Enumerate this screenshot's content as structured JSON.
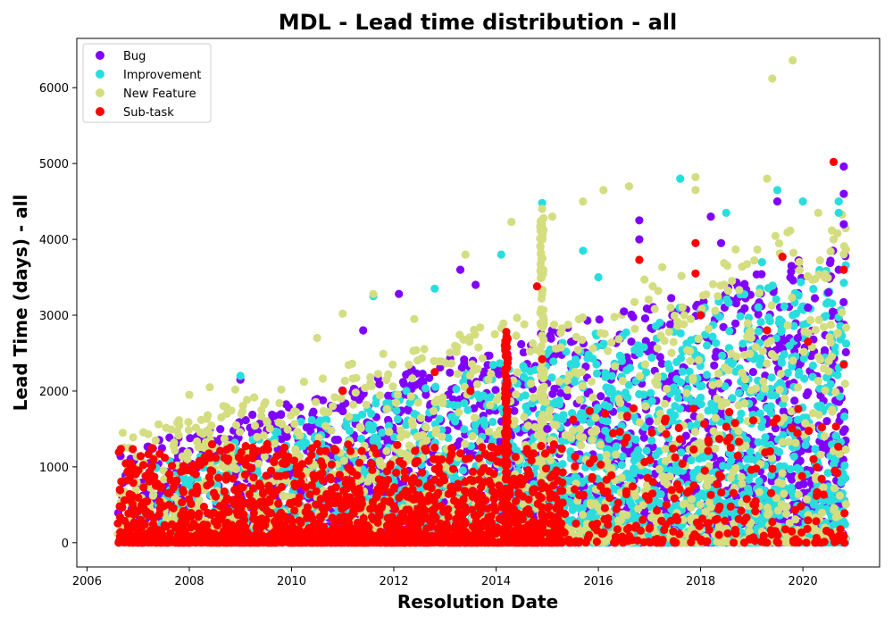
{
  "chart_data": {
    "type": "scatter",
    "title": "MDL - Lead time distribution - all",
    "xlabel": "Resolution Date",
    "ylabel": "Lead Time (days) - all",
    "xlim": [
      2005.8,
      2021.5
    ],
    "ylim": [
      -320,
      6650
    ],
    "x_ticks": [
      2006,
      2008,
      2010,
      2012,
      2014,
      2016,
      2018,
      2020
    ],
    "x_tick_labels": [
      "2006",
      "2008",
      "2010",
      "2012",
      "2014",
      "2016",
      "2018",
      "2020"
    ],
    "y_ticks": [
      0,
      1000,
      2000,
      3000,
      4000,
      5000,
      6000
    ],
    "y_tick_labels": [
      "0",
      "1000",
      "2000",
      "3000",
      "4000",
      "5000",
      "6000"
    ],
    "grid": false,
    "legend_position": "top-left",
    "x_range_data": [
      2006.6,
      2020.85
    ],
    "series": [
      {
        "name": "Bug",
        "color": "#8000ff",
        "note_distribution": "dense, majority below 1500, rising upper envelope",
        "points": [
          [
            2009.0,
            2150
          ],
          [
            2011.4,
            2800
          ],
          [
            2012.1,
            3280
          ],
          [
            2013.3,
            3600
          ],
          [
            2013.6,
            3400
          ],
          [
            2016.8,
            4250
          ],
          [
            2016.8,
            4000
          ],
          [
            2018.2,
            4300
          ],
          [
            2018.4,
            3950
          ],
          [
            2019.5,
            4500
          ],
          [
            2020.1,
            3100
          ],
          [
            2020.5,
            3300
          ],
          [
            2020.7,
            3600
          ],
          [
            2020.8,
            4960
          ],
          [
            2020.8,
            4600
          ],
          [
            2020.8,
            4200
          ],
          [
            2016.5,
            3050
          ],
          [
            2017.0,
            1600
          ],
          [
            2015.0,
            1500
          ],
          [
            2019.9,
            2700
          ]
        ]
      },
      {
        "name": "Improvement",
        "color": "#2adddd",
        "note_distribution": "dense from 2010 onward, rising upper envelope",
        "points": [
          [
            2009.0,
            2200
          ],
          [
            2011.6,
            3250
          ],
          [
            2012.8,
            3350
          ],
          [
            2014.1,
            3800
          ],
          [
            2014.9,
            4480
          ],
          [
            2015.7,
            3850
          ],
          [
            2016.0,
            3500
          ],
          [
            2017.6,
            4800
          ],
          [
            2018.5,
            4350
          ],
          [
            2019.2,
            3700
          ],
          [
            2019.5,
            4650
          ],
          [
            2020.0,
            4500
          ],
          [
            2020.7,
            4500
          ],
          [
            2020.7,
            4350
          ],
          [
            2019.8,
            3000
          ]
        ]
      },
      {
        "name": "New Feature",
        "color": "#d4dd80",
        "note_distribution": "spread across full range, vertical streak near 2014.9",
        "points": [
          [
            2006.7,
            1450
          ],
          [
            2007.4,
            1560
          ],
          [
            2008.0,
            1950
          ],
          [
            2008.4,
            2050
          ],
          [
            2008.9,
            2020
          ],
          [
            2010.5,
            2700
          ],
          [
            2011.0,
            3020
          ],
          [
            2011.6,
            3280
          ],
          [
            2012.4,
            2950
          ],
          [
            2013.4,
            3800
          ],
          [
            2014.3,
            4230
          ],
          [
            2014.9,
            4400
          ],
          [
            2015.1,
            4300
          ],
          [
            2015.7,
            4500
          ],
          [
            2016.1,
            4650
          ],
          [
            2016.6,
            4700
          ],
          [
            2017.9,
            4820
          ],
          [
            2017.9,
            4650
          ],
          [
            2019.3,
            4800
          ],
          [
            2019.4,
            6120
          ],
          [
            2019.8,
            6360
          ],
          [
            2020.3,
            4350
          ],
          [
            2020.6,
            4000
          ]
        ]
      },
      {
        "name": "Sub-task",
        "color": "#ff0000",
        "note_distribution": "mostly below 1000, vertical streak near 2014.2",
        "points": [
          [
            2008.3,
            1130
          ],
          [
            2009.6,
            950
          ],
          [
            2010.5,
            1300
          ],
          [
            2011.0,
            2000
          ],
          [
            2012.8,
            2250
          ],
          [
            2013.5,
            2000
          ],
          [
            2014.2,
            2780
          ],
          [
            2014.2,
            2500
          ],
          [
            2014.8,
            3380
          ],
          [
            2014.9,
            2420
          ],
          [
            2016.8,
            3730
          ],
          [
            2017.3,
            1600
          ],
          [
            2017.9,
            3950
          ],
          [
            2017.9,
            3550
          ],
          [
            2018.0,
            3000
          ],
          [
            2019.3,
            2800
          ],
          [
            2019.6,
            3770
          ],
          [
            2020.1,
            2650
          ],
          [
            2020.6,
            5020
          ],
          [
            2020.8,
            3600
          ],
          [
            2020.8,
            2350
          ]
        ]
      }
    ]
  }
}
